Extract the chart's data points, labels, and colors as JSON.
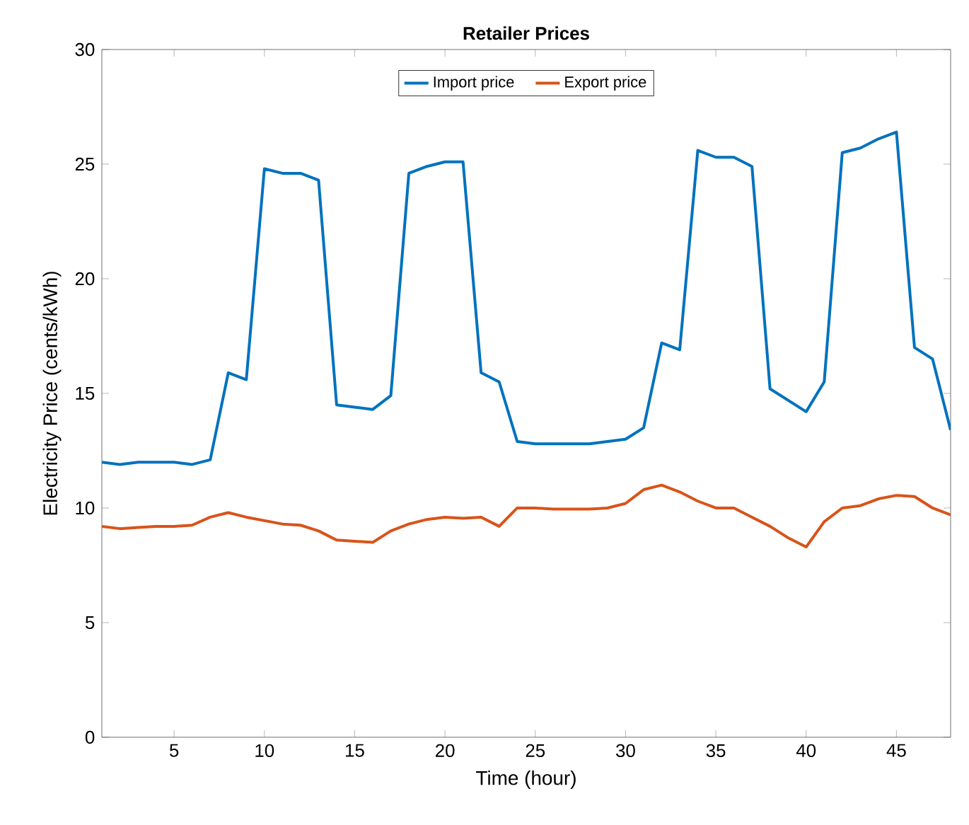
{
  "chart_data": {
    "type": "line",
    "title": "Retailer Prices",
    "xlabel": "Time (hour)",
    "ylabel": "Electricity Price (cents/kWh)",
    "x": [
      1,
      2,
      3,
      4,
      5,
      6,
      7,
      8,
      9,
      10,
      11,
      12,
      13,
      14,
      15,
      16,
      17,
      18,
      19,
      20,
      21,
      22,
      23,
      24,
      25,
      26,
      27,
      28,
      29,
      30,
      31,
      32,
      33,
      34,
      35,
      36,
      37,
      38,
      39,
      40,
      41,
      42,
      43,
      44,
      45,
      46,
      47,
      48
    ],
    "series": [
      {
        "name": "Import price",
        "color": "#0072bd",
        "values": [
          12.0,
          11.9,
          12.0,
          12.0,
          12.0,
          11.9,
          12.1,
          15.9,
          15.6,
          24.8,
          24.6,
          24.6,
          24.3,
          14.5,
          14.4,
          14.3,
          14.9,
          24.6,
          24.9,
          25.1,
          25.1,
          15.9,
          15.5,
          12.9,
          12.8,
          12.8,
          12.8,
          12.8,
          12.9,
          13.0,
          13.5,
          17.2,
          16.9,
          25.6,
          25.3,
          25.3,
          24.9,
          15.2,
          14.7,
          14.2,
          15.5,
          25.5,
          25.7,
          26.1,
          26.4,
          17.0,
          16.5,
          13.4
        ]
      },
      {
        "name": "Export price",
        "color": "#d95319",
        "values": [
          9.2,
          9.1,
          9.15,
          9.2,
          9.2,
          9.25,
          9.6,
          9.8,
          9.6,
          9.45,
          9.3,
          9.25,
          9.0,
          8.6,
          8.55,
          8.5,
          9.0,
          9.3,
          9.5,
          9.6,
          9.55,
          9.6,
          9.2,
          10.0,
          10.0,
          9.95,
          9.95,
          9.95,
          10.0,
          10.2,
          10.8,
          11.0,
          10.7,
          10.3,
          10.0,
          10.0,
          9.6,
          9.2,
          8.7,
          8.3,
          9.4,
          10.0,
          10.1,
          10.4,
          10.55,
          10.5,
          10.0,
          9.7
        ]
      }
    ],
    "xlim": [
      1,
      48
    ],
    "ylim": [
      0,
      30
    ],
    "xticks": [
      5,
      10,
      15,
      20,
      25,
      30,
      35,
      40,
      45
    ],
    "yticks": [
      0,
      5,
      10,
      15,
      20,
      25,
      30
    ],
    "grid": false,
    "legend": "top",
    "marker": "none",
    "line_style": "solid"
  }
}
